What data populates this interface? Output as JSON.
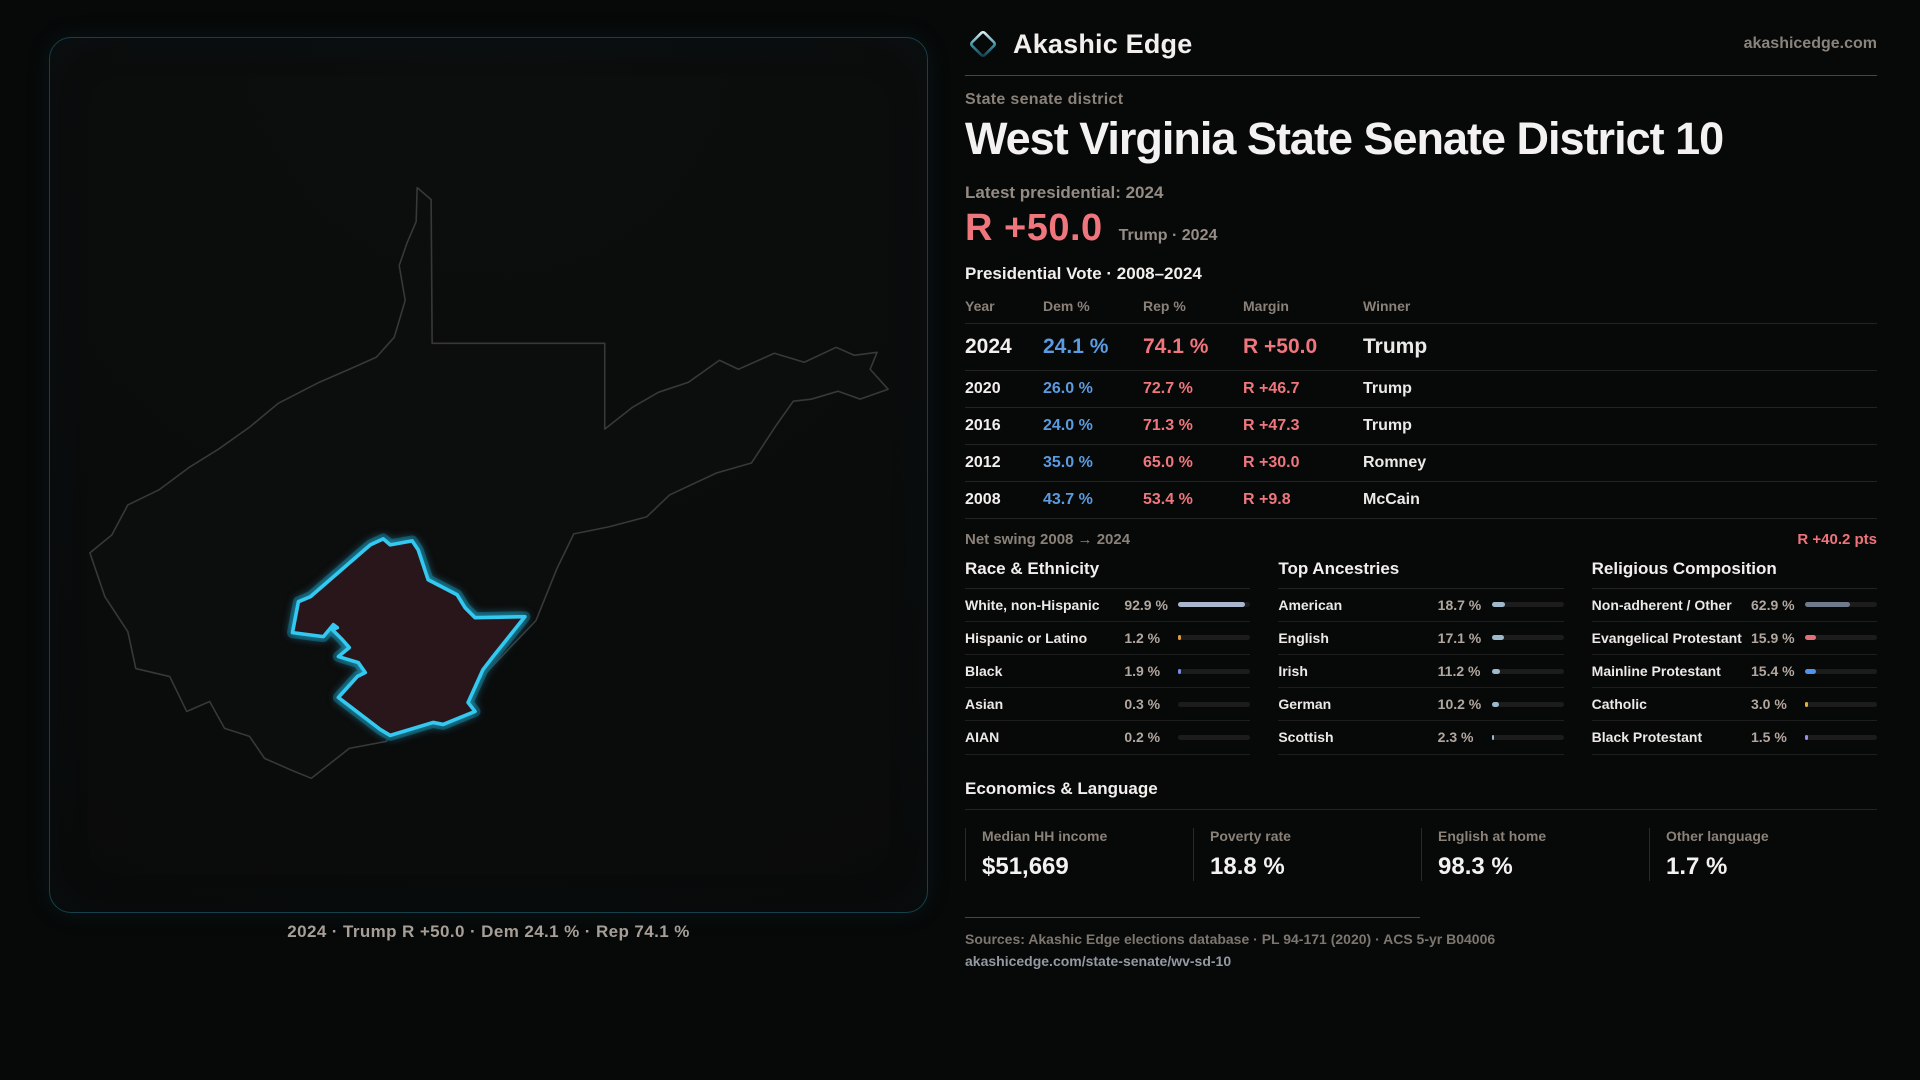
{
  "brand": {
    "name": "Akashic Edge",
    "domain": "akashicedge.com",
    "diamond_color": "#2aa0b8"
  },
  "map": {
    "caption": "2024 · Trump R +50.0 · Dem 24.1 % · Rep 74.1 %",
    "district_stroke": "#33c9f0",
    "district_fill": "#29161b",
    "state_outline_color": "#383838"
  },
  "header": {
    "kicker": "State senate district",
    "title": "West Virginia State Senate District 10",
    "latest_label": "Latest presidential: 2024",
    "margin": "R +50.0",
    "margin_note": "Trump · 2024",
    "table_title": "Presidential Vote · 2008–2024"
  },
  "colors": {
    "dem_blue": "#5b9be0",
    "rep_red": "#f0767e",
    "accent_teal": "#1d5563"
  },
  "table": {
    "columns": [
      "Year",
      "Dem %",
      "Rep %",
      "Margin",
      "Winner"
    ],
    "rows": [
      {
        "year": "2024",
        "dem": "24.1 %",
        "rep": "74.1 %",
        "margin": "R +50.0",
        "winner": "Trump",
        "latest": true
      },
      {
        "year": "2020",
        "dem": "26.0 %",
        "rep": "72.7 %",
        "margin": "R +46.7",
        "winner": "Trump",
        "latest": false
      },
      {
        "year": "2016",
        "dem": "24.0 %",
        "rep": "71.3 %",
        "margin": "R +47.3",
        "winner": "Trump",
        "latest": false
      },
      {
        "year": "2012",
        "dem": "35.0 %",
        "rep": "65.0 %",
        "margin": "R +30.0",
        "winner": "Romney",
        "latest": false
      },
      {
        "year": "2008",
        "dem": "43.7 %",
        "rep": "53.4 %",
        "margin": "R +9.8",
        "winner": "McCain",
        "latest": false
      }
    ]
  },
  "net_swing": {
    "label": "Net swing 2008 → 2024",
    "value": "R +40.2 pts"
  },
  "race": {
    "title": "Race & Ethnicity",
    "rows": [
      {
        "label": "White, non-Hispanic",
        "display": "92.9 %",
        "value": 92.9,
        "color": "#a9b6ce"
      },
      {
        "label": "Hispanic or Latino",
        "display": "1.2 %",
        "value": 1.2,
        "color": "#e09a3e"
      },
      {
        "label": "Black",
        "display": "1.9 %",
        "value": 1.9,
        "color": "#7f87e8"
      },
      {
        "label": "Asian",
        "display": "0.3 %",
        "value": 0.3,
        "color": "#5bbf8f"
      },
      {
        "label": "AIAN",
        "display": "0.2 %",
        "value": 0.2,
        "color": "#c08a5a"
      }
    ]
  },
  "ancestries": {
    "title": "Top Ancestries",
    "rows": [
      {
        "label": "American",
        "display": "18.7 %",
        "value": 18.7,
        "color": "#9fb8cc"
      },
      {
        "label": "English",
        "display": "17.1 %",
        "value": 17.1,
        "color": "#9fb8cc"
      },
      {
        "label": "Irish",
        "display": "11.2 %",
        "value": 11.2,
        "color": "#9fb8cc"
      },
      {
        "label": "German",
        "display": "10.2 %",
        "value": 10.2,
        "color": "#9fb8cc"
      },
      {
        "label": "Scottish",
        "display": "2.3 %",
        "value": 2.3,
        "color": "#9fb8cc"
      }
    ]
  },
  "religion": {
    "title": "Religious Composition",
    "rows": [
      {
        "label": "Non-adherent / Other",
        "display": "62.9 %",
        "value": 62.9,
        "color": "#6f7a8a"
      },
      {
        "label": "Evangelical Protestant",
        "display": "15.9 %",
        "value": 15.9,
        "color": "#e0707a"
      },
      {
        "label": "Mainline Protestant",
        "display": "15.4 %",
        "value": 15.4,
        "color": "#4f94e8"
      },
      {
        "label": "Catholic",
        "display": "3.0 %",
        "value": 3.0,
        "color": "#e0b040"
      },
      {
        "label": "Black Protestant",
        "display": "1.5 %",
        "value": 1.5,
        "color": "#9b8cf0"
      }
    ]
  },
  "economics": {
    "title": "Economics & Language",
    "stats": [
      {
        "key": "median-hh-income",
        "label": "Median HH income",
        "value": "$51,669"
      },
      {
        "key": "poverty-rate",
        "label": "Poverty rate",
        "value": "18.8 %"
      },
      {
        "key": "english-at-home",
        "label": "English at home",
        "value": "98.3 %"
      },
      {
        "key": "other-language",
        "label": "Other language",
        "value": "1.7 %"
      }
    ]
  },
  "footer": {
    "sources": "Sources: Akashic Edge elections database · PL 94-171 (2020) · ACS 5-yr B04006",
    "url": "akashicedge.com/state-senate/wv-sd-10"
  }
}
